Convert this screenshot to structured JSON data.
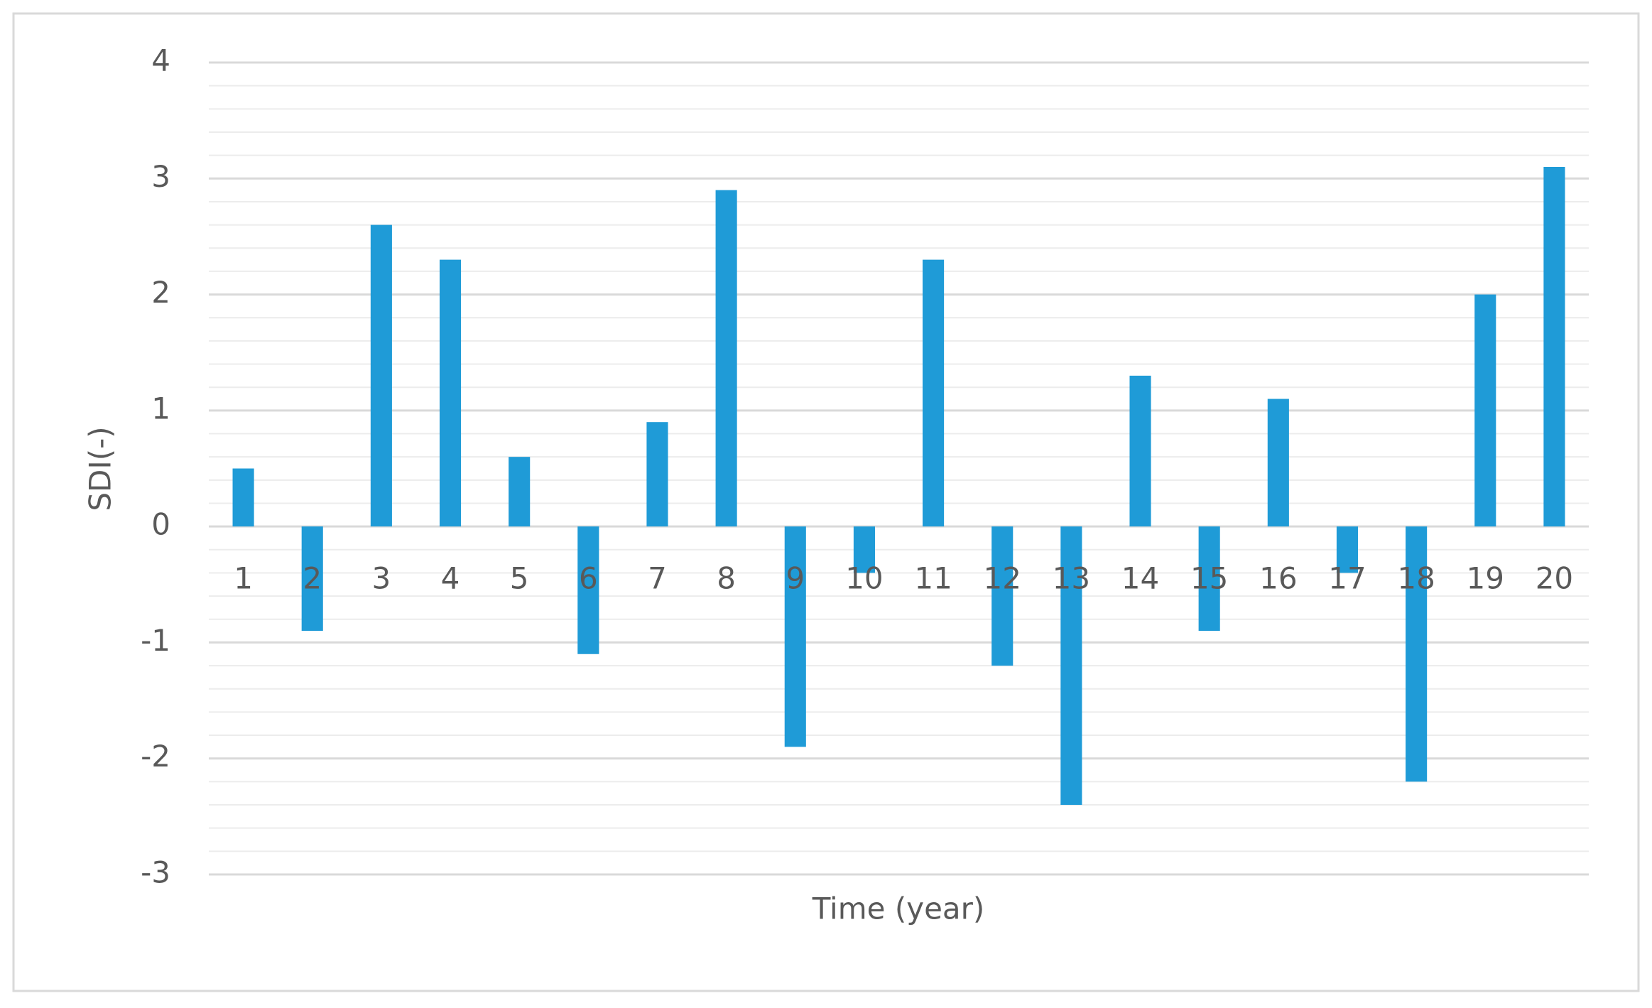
{
  "chart_data": {
    "type": "bar",
    "x_label": "Time (year)",
    "y_label": "SDI(-)",
    "categories": [
      "1",
      "2",
      "3",
      "4",
      "5",
      "6",
      "7",
      "8",
      "9",
      "10",
      "11",
      "12",
      "13",
      "14",
      "15",
      "16",
      "17",
      "18",
      "19",
      "20"
    ],
    "values": [
      0.5,
      -0.9,
      2.6,
      2.3,
      0.6,
      -1.1,
      0.9,
      2.9,
      -1.9,
      -0.4,
      2.3,
      -1.2,
      -2.4,
      1.3,
      -0.9,
      1.1,
      -0.4,
      -2.2,
      2.0,
      3.1
    ],
    "color": "#1f9bd7",
    "ylim": [
      -3,
      4
    ],
    "yticks": [
      -3,
      -2,
      -1,
      0,
      1,
      2,
      3,
      4
    ],
    "grid": true,
    "minor_grid_step": 0.2
  }
}
